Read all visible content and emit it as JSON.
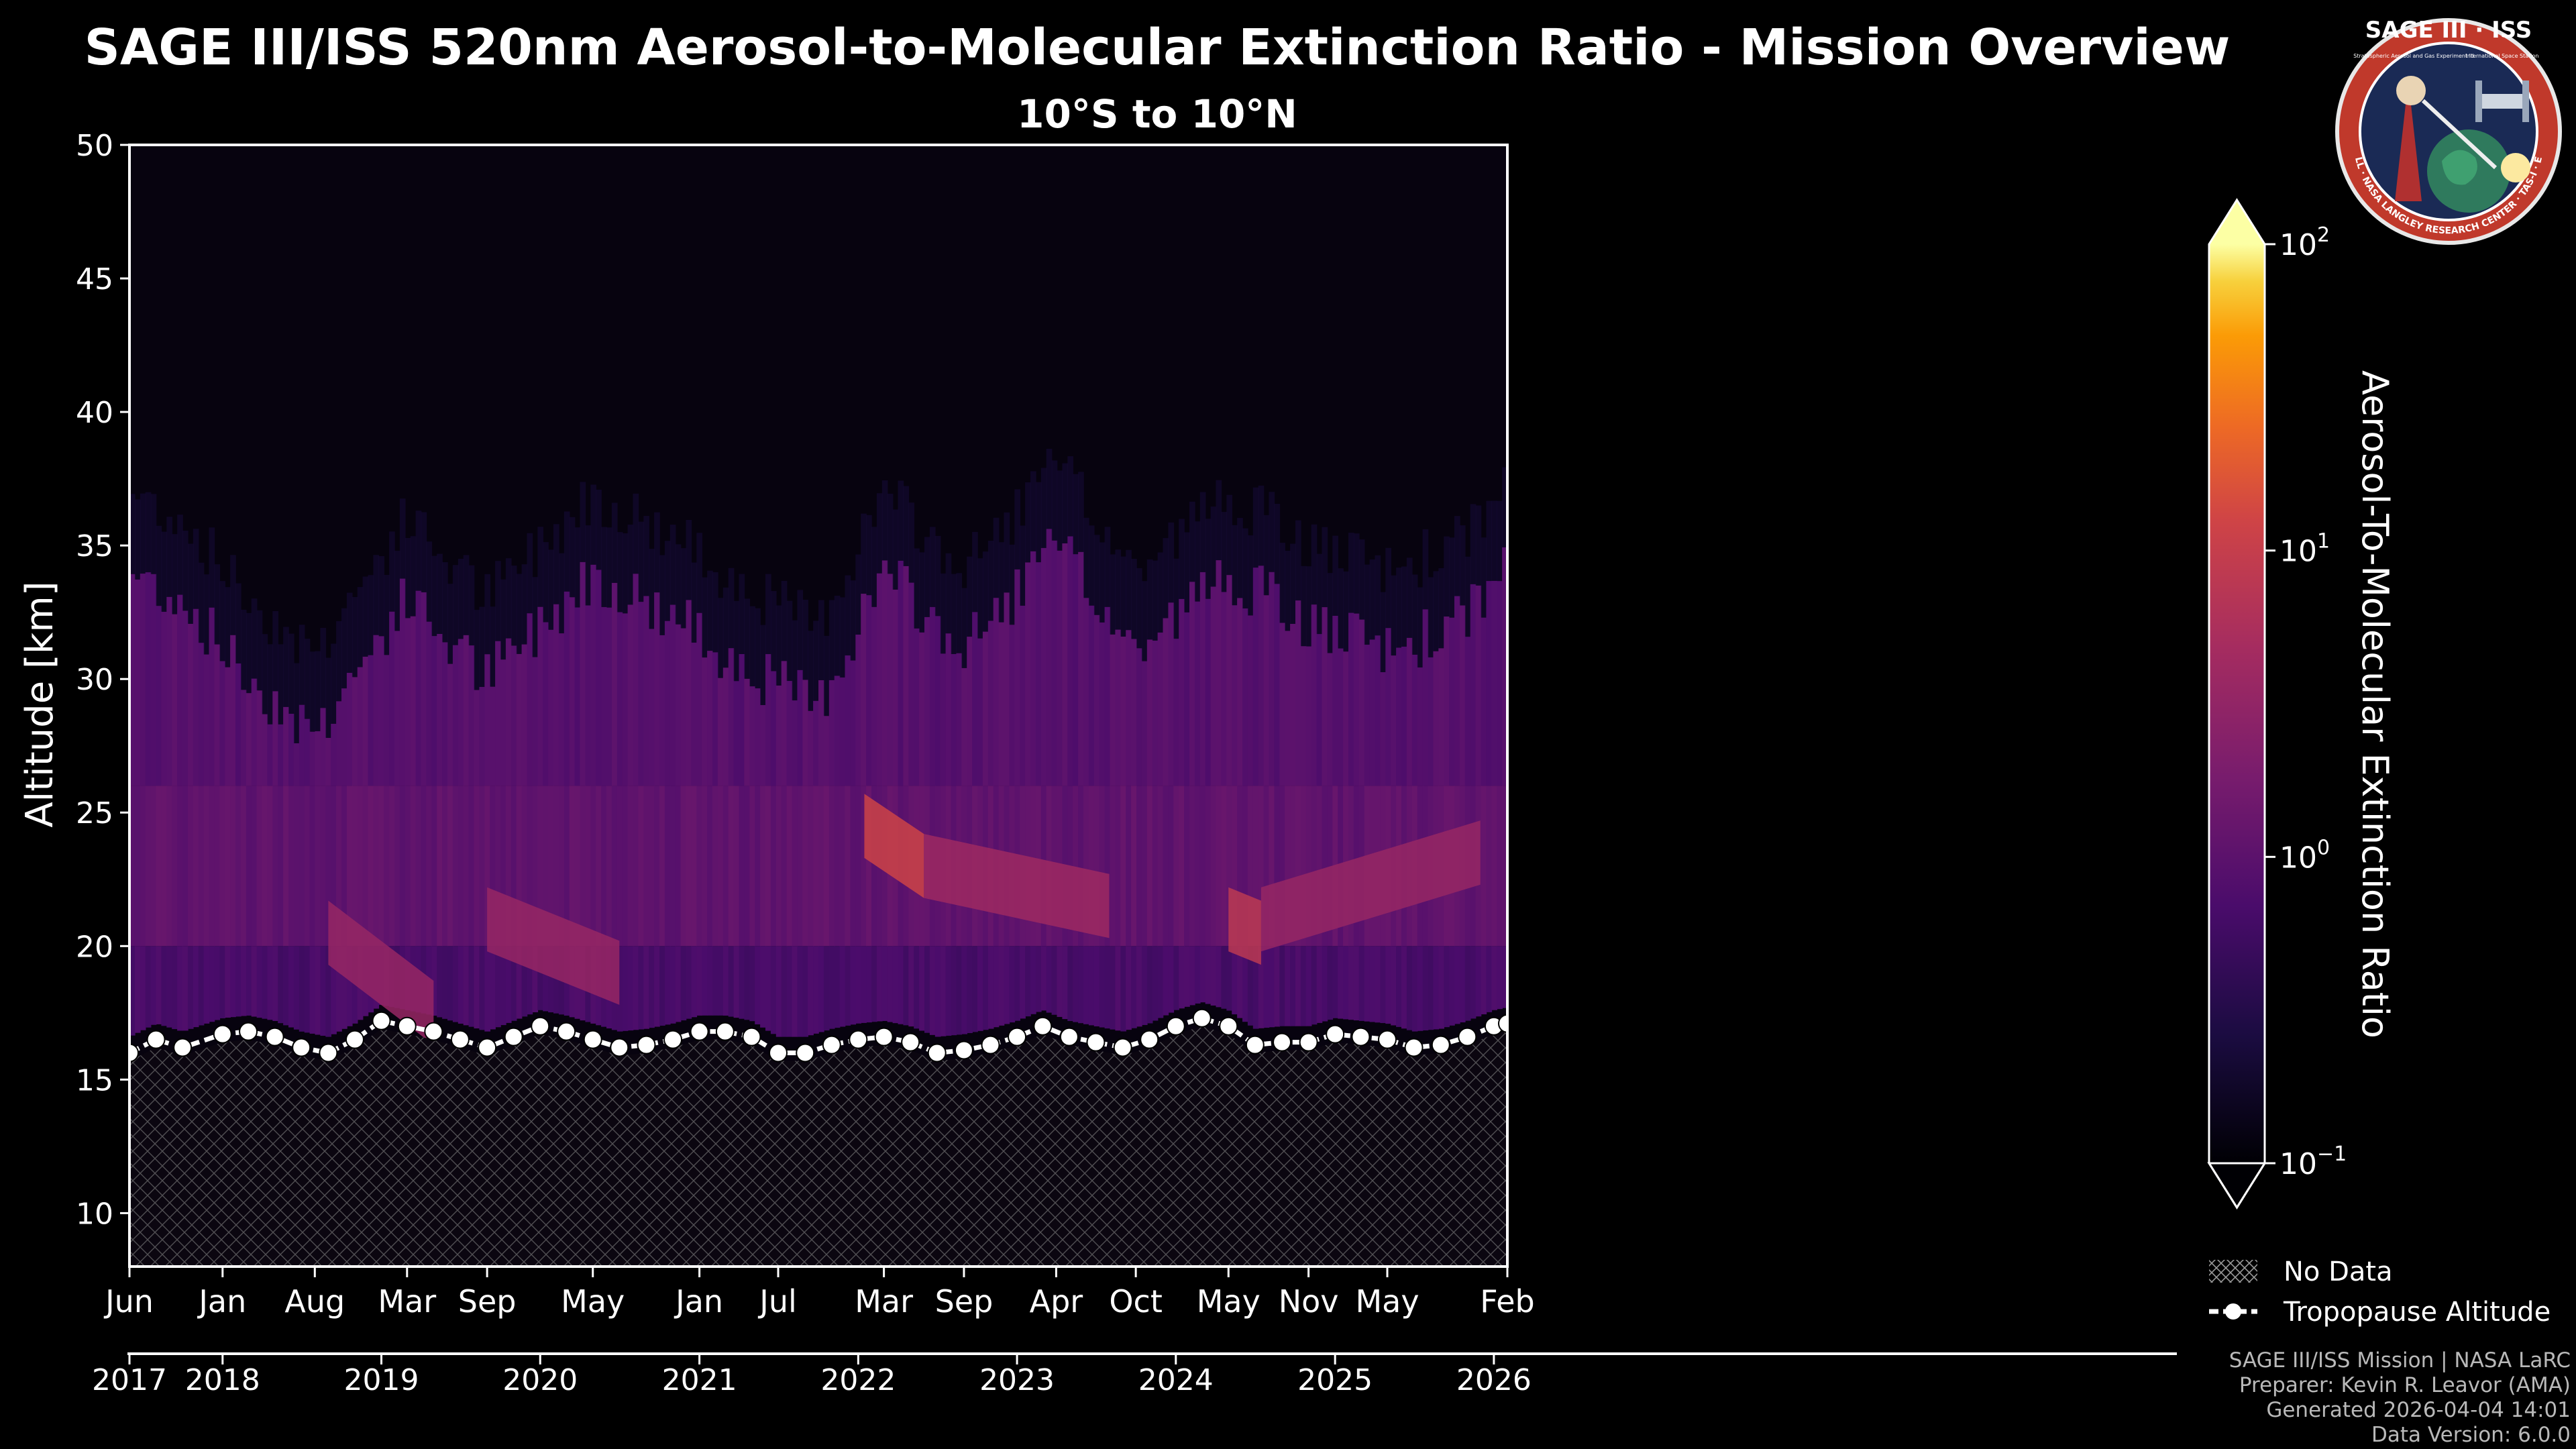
{
  "header": {
    "title": "SAGE III/ISS 520nm Aerosol-to-Molecular Extinction Ratio - Mission Overview",
    "subtitle": "10°S to 10°N"
  },
  "logo": {
    "top_text": "SAGE III · ISS",
    "sub_left": "Stratospheric Aerosol and Gas Experiment III",
    "sub_right": "International Space Station",
    "ring_text": "BALL · NASA LANGLEY RESEARCH CENTER · TAS-I · ESA",
    "colors": {
      "ring": "#c0392b",
      "field": "#1a2a55",
      "text": "#ffffff"
    }
  },
  "chart_data": {
    "type": "heatmap",
    "ylabel": "Altitude [km]",
    "ylim": [
      8,
      50
    ],
    "yticks": [
      10,
      15,
      20,
      25,
      30,
      35,
      40,
      45,
      50
    ],
    "xlim": [
      "2017-06-01",
      "2026-02-01"
    ],
    "month_ticks": [
      {
        "label": "Jun",
        "date": "2017-06-01"
      },
      {
        "label": "Jan",
        "date": "2018-01-01"
      },
      {
        "label": "Aug",
        "date": "2018-08-01"
      },
      {
        "label": "Mar",
        "date": "2019-03-01"
      },
      {
        "label": "Sep",
        "date": "2019-09-01"
      },
      {
        "label": "May",
        "date": "2020-05-01"
      },
      {
        "label": "Jan",
        "date": "2021-01-01"
      },
      {
        "label": "Jul",
        "date": "2021-07-01"
      },
      {
        "label": "Mar",
        "date": "2022-03-01"
      },
      {
        "label": "Sep",
        "date": "2022-09-01"
      },
      {
        "label": "Apr",
        "date": "2023-04-01"
      },
      {
        "label": "Oct",
        "date": "2023-10-01"
      },
      {
        "label": "May",
        "date": "2024-05-01"
      },
      {
        "label": "Nov",
        "date": "2024-11-01"
      },
      {
        "label": "May",
        "date": "2025-05-01"
      },
      {
        "label": "Feb",
        "date": "2026-02-01"
      }
    ],
    "year_ticks": [
      {
        "label": "2017",
        "date": "2017-06-01"
      },
      {
        "label": "2018",
        "date": "2018-01-01"
      },
      {
        "label": "2019",
        "date": "2019-01-01"
      },
      {
        "label": "2020",
        "date": "2020-01-01"
      },
      {
        "label": "2021",
        "date": "2021-01-01"
      },
      {
        "label": "2022",
        "date": "2022-01-01"
      },
      {
        "label": "2023",
        "date": "2023-01-01"
      },
      {
        "label": "2024",
        "date": "2024-01-01"
      },
      {
        "label": "2025",
        "date": "2025-01-01"
      },
      {
        "label": "2026",
        "date": "2026-01-01"
      }
    ],
    "colorbar": {
      "label": "Aerosol-To-Molecular Extinction Ratio",
      "scale": "log",
      "range": [
        0.1,
        100
      ],
      "ticks": [
        {
          "base": "10",
          "exp": "2",
          "value": 100
        },
        {
          "base": "10",
          "exp": "1",
          "value": 10
        },
        {
          "base": "10",
          "exp": "0",
          "value": 1
        },
        {
          "base": "10",
          "exp": "−1",
          "value": 0.1
        }
      ],
      "colormap": "inferno"
    },
    "legend": {
      "placement": "lower-right",
      "items": [
        {
          "label": "No Data",
          "kind": "hatch"
        },
        {
          "label": "Tropopause Altitude",
          "kind": "line-marker"
        }
      ]
    },
    "aerosol_top_km": [
      {
        "date": "2017-06-01",
        "km": 34
      },
      {
        "date": "2017-10-01",
        "km": 33
      },
      {
        "date": "2018-03-01",
        "km": 30
      },
      {
        "date": "2018-08-01",
        "km": 28
      },
      {
        "date": "2019-03-01",
        "km": 33
      },
      {
        "date": "2019-09-01",
        "km": 30
      },
      {
        "date": "2020-05-01",
        "km": 34
      },
      {
        "date": "2020-12-01",
        "km": 32
      },
      {
        "date": "2021-06-01",
        "km": 30
      },
      {
        "date": "2021-10-01",
        "km": 29
      },
      {
        "date": "2022-03-01",
        "km": 34
      },
      {
        "date": "2022-09-01",
        "km": 31
      },
      {
        "date": "2023-04-01",
        "km": 35
      },
      {
        "date": "2023-10-01",
        "km": 31
      },
      {
        "date": "2024-05-01",
        "km": 34
      },
      {
        "date": "2024-11-01",
        "km": 32
      },
      {
        "date": "2025-05-01",
        "km": 31
      },
      {
        "date": "2025-10-01",
        "km": 32
      },
      {
        "date": "2026-02-01",
        "km": 34
      }
    ],
    "plumes": [
      {
        "start": "2018-09-01",
        "end": "2019-05-01",
        "alt_km": [
          20.5,
          17.5
        ],
        "value": 3.5
      },
      {
        "start": "2019-09-01",
        "end": "2020-07-01",
        "alt_km": [
          21,
          19
        ],
        "value": 3.5
      },
      {
        "start": "2022-01-15",
        "end": "2022-06-01",
        "alt_km": [
          24.5,
          23
        ],
        "value": 12
      },
      {
        "start": "2022-06-01",
        "end": "2023-08-01",
        "alt_km": [
          23,
          21.5
        ],
        "value": 4
      },
      {
        "start": "2024-05-01",
        "end": "2024-07-15",
        "alt_km": [
          21,
          20.5
        ],
        "value": 8
      },
      {
        "start": "2024-07-15",
        "end": "2025-12-01",
        "alt_km": [
          21,
          23.5
        ],
        "value": 3.5
      }
    ],
    "tropopause_km": [
      {
        "date": "2017-06-01",
        "km": 16.0
      },
      {
        "date": "2017-08-01",
        "km": 16.5
      },
      {
        "date": "2017-10-01",
        "km": 16.2
      },
      {
        "date": "2018-01-01",
        "km": 16.7
      },
      {
        "date": "2018-03-01",
        "km": 16.8
      },
      {
        "date": "2018-05-01",
        "km": 16.6
      },
      {
        "date": "2018-07-01",
        "km": 16.2
      },
      {
        "date": "2018-09-01",
        "km": 16.0
      },
      {
        "date": "2018-11-01",
        "km": 16.5
      },
      {
        "date": "2019-01-01",
        "km": 17.2
      },
      {
        "date": "2019-03-01",
        "km": 17.0
      },
      {
        "date": "2019-05-01",
        "km": 16.8
      },
      {
        "date": "2019-07-01",
        "km": 16.5
      },
      {
        "date": "2019-09-01",
        "km": 16.2
      },
      {
        "date": "2019-11-01",
        "km": 16.6
      },
      {
        "date": "2020-01-01",
        "km": 17.0
      },
      {
        "date": "2020-03-01",
        "km": 16.8
      },
      {
        "date": "2020-05-01",
        "km": 16.5
      },
      {
        "date": "2020-07-01",
        "km": 16.2
      },
      {
        "date": "2020-09-01",
        "km": 16.3
      },
      {
        "date": "2020-11-01",
        "km": 16.5
      },
      {
        "date": "2021-01-01",
        "km": 16.8
      },
      {
        "date": "2021-03-01",
        "km": 16.8
      },
      {
        "date": "2021-05-01",
        "km": 16.6
      },
      {
        "date": "2021-07-01",
        "km": 16.0
      },
      {
        "date": "2021-09-01",
        "km": 16.0
      },
      {
        "date": "2021-11-01",
        "km": 16.3
      },
      {
        "date": "2022-01-01",
        "km": 16.5
      },
      {
        "date": "2022-03-01",
        "km": 16.6
      },
      {
        "date": "2022-05-01",
        "km": 16.4
      },
      {
        "date": "2022-07-01",
        "km": 16.0
      },
      {
        "date": "2022-09-01",
        "km": 16.1
      },
      {
        "date": "2022-11-01",
        "km": 16.3
      },
      {
        "date": "2023-01-01",
        "km": 16.6
      },
      {
        "date": "2023-03-01",
        "km": 17.0
      },
      {
        "date": "2023-05-01",
        "km": 16.6
      },
      {
        "date": "2023-07-01",
        "km": 16.4
      },
      {
        "date": "2023-09-01",
        "km": 16.2
      },
      {
        "date": "2023-11-01",
        "km": 16.5
      },
      {
        "date": "2024-01-01",
        "km": 17.0
      },
      {
        "date": "2024-03-01",
        "km": 17.3
      },
      {
        "date": "2024-05-01",
        "km": 17.0
      },
      {
        "date": "2024-07-01",
        "km": 16.3
      },
      {
        "date": "2024-09-01",
        "km": 16.4
      },
      {
        "date": "2024-11-01",
        "km": 16.4
      },
      {
        "date": "2025-01-01",
        "km": 16.7
      },
      {
        "date": "2025-03-01",
        "km": 16.6
      },
      {
        "date": "2025-05-01",
        "km": 16.5
      },
      {
        "date": "2025-07-01",
        "km": 16.2
      },
      {
        "date": "2025-09-01",
        "km": 16.3
      },
      {
        "date": "2025-11-01",
        "km": 16.6
      },
      {
        "date": "2026-01-01",
        "km": 17.0
      },
      {
        "date": "2026-02-01",
        "km": 17.1
      }
    ]
  },
  "credits": {
    "line1": "SAGE III/ISS Mission | NASA LaRC",
    "line2": "Preparer: Kevin R. Leavor (AMA)",
    "line3": "Generated 2026-04-04 14:01",
    "line4": "Data Version: 6.0.0"
  }
}
